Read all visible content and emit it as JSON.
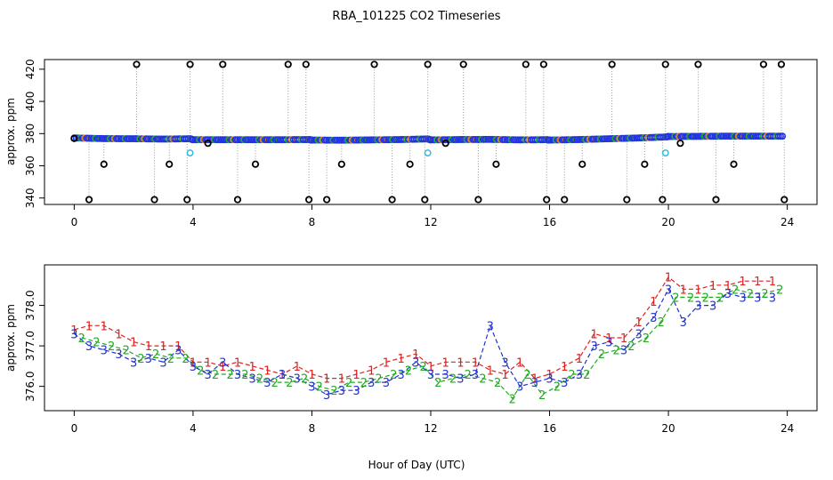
{
  "chart_data": [
    {
      "type": "scatter",
      "title": "RBA_101225  CO2 Timeseries",
      "xlabel": "",
      "ylabel": "approx. ppm",
      "xlim": [
        -1,
        25
      ],
      "ylim": [
        336,
        426
      ],
      "xticks": [
        "0",
        "4",
        "8",
        "12",
        "16",
        "20",
        "24"
      ],
      "yticks": [
        "340",
        "360",
        "380",
        "400",
        "420"
      ],
      "grid": false,
      "colors": {
        "main": "#2233dd",
        "alt": "#33bbdd",
        "outlier": "#000000",
        "spike_line": "#9a9a9a",
        "green": "#22aa22",
        "orange": "#e08020"
      },
      "series": [
        {
          "x": [
            0.0,
            1.0,
            2.0,
            3.0,
            3.9,
            4.0,
            5.0,
            6.0,
            7.0,
            7.9,
            8.0,
            9.0,
            10.0,
            11.0,
            11.9,
            12.0,
            13.0,
            14.0,
            15.0,
            15.9,
            16.0,
            17.0,
            18.0,
            19.0,
            19.9,
            20.0,
            21.0,
            22.0,
            23.0,
            23.9
          ],
          "y": [
            377.3,
            376.9,
            376.8,
            376.6,
            376.8,
            376.2,
            376.2,
            376.2,
            376.2,
            376.3,
            376.0,
            375.9,
            376.1,
            376.3,
            376.7,
            376.1,
            376.3,
            376.4,
            376.1,
            376.2,
            376.0,
            376.3,
            376.8,
            377.3,
            377.9,
            378.2,
            378.3,
            378.4,
            378.4,
            378.4
          ]
        },
        {
          "x": [
            0.0,
            0.5,
            1.0,
            2.1,
            2.7,
            3.2,
            3.8,
            3.9,
            4.5,
            5.0,
            5.5,
            6.1,
            7.2,
            7.8,
            7.9,
            8.5,
            9.0,
            10.1,
            10.7,
            11.3,
            11.8,
            11.9,
            12.5,
            13.1,
            13.6,
            14.2,
            15.2,
            15.8,
            15.9,
            16.5,
            17.1,
            18.1,
            18.6,
            19.2,
            19.8,
            19.9,
            20.4,
            21.0,
            21.6,
            22.2,
            23.2,
            23.8,
            23.9
          ],
          "y": [
            377,
            339,
            361,
            423,
            339,
            361,
            339,
            423,
            374,
            423,
            339,
            361,
            423,
            423,
            339,
            339,
            361,
            423,
            339,
            361,
            339,
            423,
            374,
            423,
            339,
            361,
            423,
            423,
            339,
            339,
            361,
            423,
            339,
            361,
            339,
            423,
            374,
            423,
            339,
            361,
            423,
            423,
            339
          ]
        }
      ]
    },
    {
      "type": "scatter",
      "title": "",
      "xlabel": "Hour of Day (UTC)",
      "ylabel": "approx. ppm",
      "xlim": [
        -1,
        25
      ],
      "ylim": [
        375.4,
        379.0
      ],
      "xticks": [
        "0",
        "4",
        "8",
        "12",
        "16",
        "20",
        "24"
      ],
      "yticks": [
        "376.0",
        "377.0",
        "378.0"
      ],
      "grid": false,
      "colors": {
        "s1": "#dd2222",
        "s2": "#22aa22",
        "s3": "#2233cc"
      },
      "series": [
        {
          "name": "1",
          "x": [
            0,
            0.5,
            1,
            1.5,
            2,
            2.5,
            3,
            3.5,
            4,
            4.5,
            5,
            5.5,
            6,
            6.5,
            7,
            7.5,
            8,
            8.5,
            9,
            9.5,
            10,
            10.5,
            11,
            11.5,
            12,
            12.5,
            13,
            13.5,
            14,
            14.5,
            15,
            15.5,
            16,
            16.5,
            17,
            17.5,
            18,
            18.5,
            19,
            19.5,
            20,
            20.5,
            21,
            21.5,
            22,
            22.5,
            23,
            23.5
          ],
          "y": [
            377.4,
            377.5,
            377.5,
            377.3,
            377.1,
            377.0,
            377.0,
            377.0,
            376.6,
            376.6,
            376.5,
            376.6,
            376.5,
            376.4,
            376.3,
            376.5,
            376.3,
            376.2,
            376.2,
            376.3,
            376.4,
            376.6,
            376.7,
            376.8,
            376.5,
            376.6,
            376.6,
            376.6,
            376.4,
            376.3,
            376.6,
            376.2,
            376.3,
            376.5,
            376.7,
            377.3,
            377.2,
            377.2,
            377.6,
            378.1,
            378.7,
            378.4,
            378.4,
            378.5,
            378.5,
            378.6,
            378.6,
            378.6
          ]
        },
        {
          "name": "2",
          "x": [
            0.25,
            0.75,
            1.25,
            1.75,
            2.25,
            2.75,
            3.25,
            3.75,
            4.25,
            4.75,
            5.25,
            5.75,
            6.25,
            6.75,
            7.25,
            7.75,
            8.25,
            8.75,
            9.25,
            9.75,
            10.25,
            10.75,
            11.25,
            11.75,
            12.25,
            12.75,
            13.25,
            13.75,
            14.25,
            14.75,
            15.25,
            15.75,
            16.25,
            16.75,
            17.25,
            17.75,
            18.25,
            18.75,
            19.25,
            19.75,
            20.25,
            20.75,
            21.25,
            21.75,
            22.25,
            22.75,
            23.25,
            23.75
          ],
          "y": [
            377.2,
            377.1,
            377.0,
            376.9,
            376.7,
            376.8,
            376.7,
            376.7,
            376.4,
            376.3,
            376.3,
            376.3,
            376.2,
            376.1,
            376.1,
            376.2,
            376.0,
            375.9,
            376.1,
            376.1,
            376.2,
            376.3,
            376.4,
            376.5,
            376.1,
            376.2,
            376.3,
            376.2,
            376.1,
            375.7,
            376.3,
            375.8,
            376.0,
            376.3,
            376.3,
            376.8,
            376.9,
            377.0,
            377.2,
            377.6,
            378.2,
            378.2,
            378.2,
            378.2,
            378.4,
            378.3,
            378.3,
            378.4
          ]
        },
        {
          "name": "3",
          "x": [
            0,
            0.5,
            1,
            1.5,
            2,
            2.5,
            3,
            3.5,
            4,
            4.5,
            5,
            5.5,
            6,
            6.5,
            7,
            7.5,
            8,
            8.5,
            9,
            9.5,
            10,
            10.5,
            11,
            11.5,
            12,
            12.5,
            13,
            13.5,
            14,
            14.5,
            15,
            15.5,
            16,
            16.5,
            17,
            17.5,
            18,
            18.5,
            19,
            19.5,
            20,
            20.5,
            21,
            21.5,
            22,
            22.5,
            23,
            23.5
          ],
          "y": [
            377.3,
            377.0,
            376.9,
            376.8,
            376.6,
            376.7,
            376.6,
            376.9,
            376.5,
            376.3,
            376.6,
            376.3,
            376.2,
            376.1,
            376.3,
            376.2,
            376.0,
            375.8,
            375.9,
            375.9,
            376.1,
            376.1,
            376.3,
            376.6,
            376.3,
            376.3,
            376.2,
            376.3,
            377.5,
            376.6,
            376.0,
            376.1,
            376.2,
            376.1,
            376.3,
            377.0,
            377.1,
            376.9,
            377.3,
            377.7,
            378.4,
            377.6,
            378.0,
            378.0,
            378.3,
            378.2,
            378.2,
            378.2
          ]
        }
      ]
    }
  ]
}
